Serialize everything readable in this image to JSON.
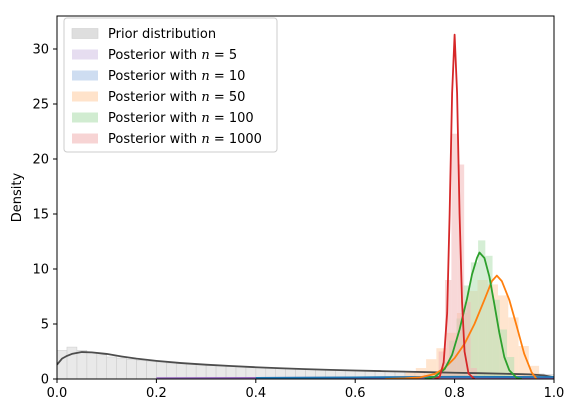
{
  "chart_data": {
    "type": "area",
    "title": "",
    "xlabel": "",
    "ylabel": "Density",
    "xlim": [
      0,
      1
    ],
    "ylim": [
      0,
      33
    ],
    "x_ticks": [
      "0.0",
      "0.2",
      "0.4",
      "0.6",
      "0.8",
      "1.0"
    ],
    "y_ticks": [
      "0",
      "5",
      "10",
      "15",
      "20",
      "25",
      "30"
    ],
    "grid": false,
    "legend_position": "top-left",
    "series": [
      {
        "name": "Prior distribution",
        "color": "#4d4d4d",
        "fill": "#c8c8c8",
        "curve": [
          [
            0.0,
            1.3
          ],
          [
            0.01,
            1.85
          ],
          [
            0.02,
            2.1
          ],
          [
            0.03,
            2.28
          ],
          [
            0.05,
            2.45
          ],
          [
            0.07,
            2.42
          ],
          [
            0.1,
            2.28
          ],
          [
            0.13,
            2.05
          ],
          [
            0.16,
            1.85
          ],
          [
            0.2,
            1.65
          ],
          [
            0.25,
            1.45
          ],
          [
            0.3,
            1.3
          ],
          [
            0.35,
            1.18
          ],
          [
            0.4,
            1.07
          ],
          [
            0.45,
            0.98
          ],
          [
            0.5,
            0.9
          ],
          [
            0.55,
            0.83
          ],
          [
            0.6,
            0.77
          ],
          [
            0.65,
            0.72
          ],
          [
            0.7,
            0.67
          ],
          [
            0.75,
            0.62
          ],
          [
            0.8,
            0.57
          ],
          [
            0.85,
            0.53
          ],
          [
            0.9,
            0.48
          ],
          [
            0.95,
            0.42
          ],
          [
            0.98,
            0.33
          ],
          [
            1.0,
            0.15
          ]
        ],
        "histogram": [
          2.6,
          2.9,
          2.6,
          2.4,
          2.2,
          2.0,
          1.9,
          1.8,
          1.7,
          1.6,
          1.55,
          1.45,
          1.4,
          1.35,
          1.3,
          1.25,
          1.2,
          1.15,
          1.1,
          1.07,
          1.05,
          1.0,
          0.98,
          0.95,
          0.92,
          0.9,
          0.88,
          0.85,
          0.83,
          0.8,
          0.78,
          0.77,
          0.75,
          0.73,
          0.72,
          0.7,
          0.68,
          0.66,
          0.64,
          0.63,
          0.62,
          0.6,
          0.58,
          0.57,
          0.56,
          0.54,
          0.52,
          0.5,
          0.46,
          0.4
        ]
      },
      {
        "name": "Posterior with $n = 5$",
        "color": "#9467bd",
        "fill": "#d6c6e6",
        "curve": [
          [
            0.2,
            0.08
          ],
          [
            0.4,
            0.1
          ],
          [
            0.6,
            0.12
          ],
          [
            0.8,
            0.14
          ],
          [
            1.0,
            0.12
          ]
        ]
      },
      {
        "name": "Posterior with $n = 10$",
        "color": "#1f77b4",
        "fill": "#aec7e8",
        "curve": [
          [
            0.4,
            0.1
          ],
          [
            0.6,
            0.15
          ],
          [
            0.8,
            0.2
          ],
          [
            1.0,
            0.18
          ]
        ]
      },
      {
        "name": "Posterior with $n = 50$",
        "color": "#ff7f0e",
        "fill": "#ffd0a8",
        "curve": [
          [
            0.66,
            0.0
          ],
          [
            0.7,
            0.05
          ],
          [
            0.73,
            0.15
          ],
          [
            0.76,
            0.45
          ],
          [
            0.78,
            1.0
          ],
          [
            0.8,
            1.9
          ],
          [
            0.82,
            3.2
          ],
          [
            0.84,
            5.0
          ],
          [
            0.86,
            7.2
          ],
          [
            0.875,
            8.9
          ],
          [
            0.885,
            9.4
          ],
          [
            0.895,
            8.9
          ],
          [
            0.91,
            7.2
          ],
          [
            0.925,
            4.8
          ],
          [
            0.94,
            2.3
          ],
          [
            0.955,
            0.6
          ],
          [
            0.965,
            0.0
          ]
        ],
        "histogram_range": [
          0.66,
          0.97
        ],
        "histogram": [
          0.1,
          0.3,
          0.6,
          1.0,
          1.8,
          2.8,
          4.2,
          6.0,
          8.0,
          9.0,
          8.6,
          7.6,
          5.6,
          3.0,
          1.2
        ]
      },
      {
        "name": "Posterior with $n = 100$",
        "color": "#2ca02c",
        "fill": "#b3e0b3",
        "curve": [
          [
            0.74,
            0.0
          ],
          [
            0.76,
            0.2
          ],
          [
            0.78,
            0.9
          ],
          [
            0.795,
            2.2
          ],
          [
            0.81,
            4.5
          ],
          [
            0.825,
            7.3
          ],
          [
            0.835,
            9.5
          ],
          [
            0.845,
            11.0
          ],
          [
            0.85,
            11.5
          ],
          [
            0.86,
            11.0
          ],
          [
            0.87,
            9.3
          ],
          [
            0.88,
            6.8
          ],
          [
            0.89,
            4.2
          ],
          [
            0.9,
            2.0
          ],
          [
            0.91,
            0.8
          ],
          [
            0.925,
            0.1
          ],
          [
            0.935,
            0.0
          ]
        ],
        "histogram_range": [
          0.76,
          0.92
        ],
        "histogram": [
          0.5,
          1.5,
          3.5,
          5.5,
          8.5,
          10.6,
          12.6,
          11.2,
          7.2,
          4.5,
          2.0
        ]
      },
      {
        "name": "Posterior with $n = 1000$",
        "color": "#d62728",
        "fill": "#f2b8b8",
        "curve": [
          [
            0.76,
            0.0
          ],
          [
            0.77,
            0.2
          ],
          [
            0.778,
            1.5
          ],
          [
            0.785,
            6.0
          ],
          [
            0.79,
            15.0
          ],
          [
            0.795,
            26.0
          ],
          [
            0.8,
            31.3
          ],
          [
            0.805,
            26.0
          ],
          [
            0.81,
            15.0
          ],
          [
            0.815,
            7.0
          ],
          [
            0.82,
            2.5
          ],
          [
            0.828,
            0.5
          ],
          [
            0.84,
            0.0
          ]
        ],
        "histogram_range": [
          0.755,
          0.845
        ],
        "histogram": [
          0.3,
          2.5,
          9.0,
          22.3,
          19.5,
          7.0,
          1.0
        ]
      }
    ]
  }
}
